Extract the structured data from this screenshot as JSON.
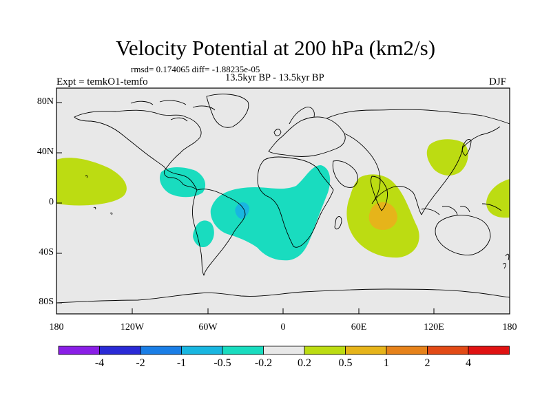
{
  "title": "Velocity Potential at 200 hPa (km2/s)",
  "stats": "rmsd= 0.174065 diff= -1.88235e-05",
  "subtitle": "13.5kyr BP - 13.5kyr BP",
  "experiment": "Expt = temkO1-temfo",
  "season": "DJF",
  "y_ticks": [
    "80N",
    "40N",
    "0",
    "40S",
    "80S"
  ],
  "x_ticks": [
    "180",
    "120W",
    "60W",
    "0",
    "60E",
    "120E",
    "180"
  ],
  "colorbar": {
    "colors": [
      "#8a1ee6",
      "#2a2ad6",
      "#1a7ee6",
      "#19b6e0",
      "#19dcbf",
      "#e8e8e8",
      "#bcdc12",
      "#e6b41a",
      "#e6821a",
      "#e24a16",
      "#e01212"
    ],
    "labels": [
      "-4",
      "-2",
      "-1",
      "-0.5",
      "-0.2",
      "0.2",
      "0.5",
      "1",
      "2",
      "4"
    ]
  },
  "colors": {
    "background": "#e8e8e8",
    "positive_low": "#bcdc12",
    "positive_mid": "#e6b41a",
    "positive_high": "#e6821a",
    "negative_low": "#19dcbf",
    "negative_mid": "#19b6e0",
    "negative_high": "#1a7ee6"
  }
}
